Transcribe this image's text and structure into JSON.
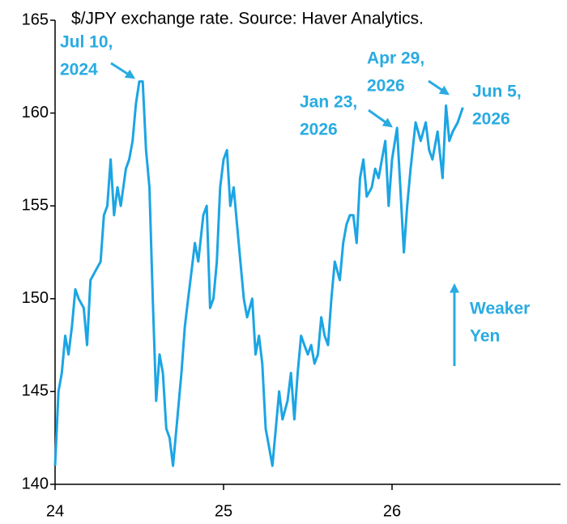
{
  "chart_data": {
    "type": "line",
    "title": "$/JPY exchange rate. Source: Haver Analytics.",
    "x": [
      2024.0,
      2024.02,
      2024.04,
      2024.06,
      2024.08,
      2024.1,
      2024.12,
      2024.14,
      2024.17,
      2024.19,
      2024.21,
      2024.24,
      2024.27,
      2024.29,
      2024.31,
      2024.33,
      2024.35,
      2024.37,
      2024.39,
      2024.42,
      2024.44,
      2024.46,
      2024.48,
      2024.5,
      2024.52,
      2024.54,
      2024.56,
      2024.58,
      2024.6,
      2024.62,
      2024.64,
      2024.66,
      2024.68,
      2024.7,
      2024.72,
      2024.75,
      2024.77,
      2024.79,
      2024.81,
      2024.83,
      2024.85,
      2024.88,
      2024.9,
      2024.92,
      2024.94,
      2024.96,
      2024.98,
      2025.0,
      2025.02,
      2025.04,
      2025.06,
      2025.08,
      2025.1,
      2025.12,
      2025.14,
      2025.17,
      2025.19,
      2025.21,
      2025.23,
      2025.25,
      2025.27,
      2025.29,
      2025.31,
      2025.33,
      2025.35,
      2025.38,
      2025.4,
      2025.42,
      2025.44,
      2025.46,
      2025.48,
      2025.5,
      2025.52,
      2025.54,
      2025.56,
      2025.58,
      2025.6,
      2025.62,
      2025.64,
      2025.66,
      2025.69,
      2025.71,
      2025.73,
      2025.75,
      2025.77,
      2025.79,
      2025.81,
      2025.83,
      2025.85,
      2025.88,
      2025.9,
      2025.92,
      2025.94,
      2025.96,
      2025.98,
      2026.0,
      2026.03,
      2026.07,
      2026.09,
      2026.11,
      2026.14,
      2026.17,
      2026.2,
      2026.22,
      2026.24,
      2026.27,
      2026.3,
      2026.32,
      2026.34,
      2026.36,
      2026.39,
      2026.42
    ],
    "series": [
      {
        "name": "$/JPY",
        "color": "#1ba5e4",
        "values": [
          141,
          145,
          146,
          148,
          147,
          148.5,
          150.5,
          150,
          149.5,
          147.5,
          151,
          151.5,
          152,
          154.5,
          155,
          157.5,
          154.5,
          156,
          155,
          157,
          157.5,
          158.5,
          160.5,
          161.7,
          161.7,
          158,
          156,
          150,
          144.5,
          147,
          146,
          143,
          142.5,
          141,
          143,
          146,
          148.5,
          150,
          151.5,
          153,
          152,
          154.5,
          155,
          149.5,
          150,
          152,
          156,
          157.5,
          158,
          155,
          156,
          154,
          152,
          150,
          149,
          150,
          147,
          148,
          146.5,
          143,
          142,
          141,
          143,
          145,
          143.5,
          144.5,
          146,
          143.5,
          146,
          148,
          147.5,
          147,
          147.5,
          146.5,
          147,
          149,
          148,
          147.5,
          150,
          152,
          151,
          153,
          154,
          154.5,
          154.5,
          153,
          156.5,
          157.5,
          155.5,
          156,
          157,
          156.5,
          157.5,
          158.5,
          155,
          157.5,
          159.2,
          152.5,
          155,
          157,
          159.5,
          158.5,
          159.5,
          158,
          157.5,
          159,
          156.5,
          160.4,
          158.5,
          159,
          159.5,
          160.3
        ]
      }
    ],
    "xlim": [
      2024,
      2027
    ],
    "xticks": [
      {
        "value": 2024,
        "label": "24"
      },
      {
        "value": 2025,
        "label": "25"
      },
      {
        "value": 2026,
        "label": "26"
      }
    ],
    "ylim": [
      140,
      165
    ],
    "yticks": [
      140,
      145,
      150,
      155,
      160,
      165
    ],
    "annotations": [
      {
        "lines": [
          "Jul 10,",
          "2024"
        ]
      },
      {
        "lines": [
          "Jan 23,",
          "2026"
        ]
      },
      {
        "lines": [
          "Apr 29,",
          "2026"
        ]
      },
      {
        "lines": [
          "Jun 5,",
          "2026"
        ]
      },
      {
        "lines": [
          "Weaker",
          "Yen"
        ]
      }
    ]
  }
}
